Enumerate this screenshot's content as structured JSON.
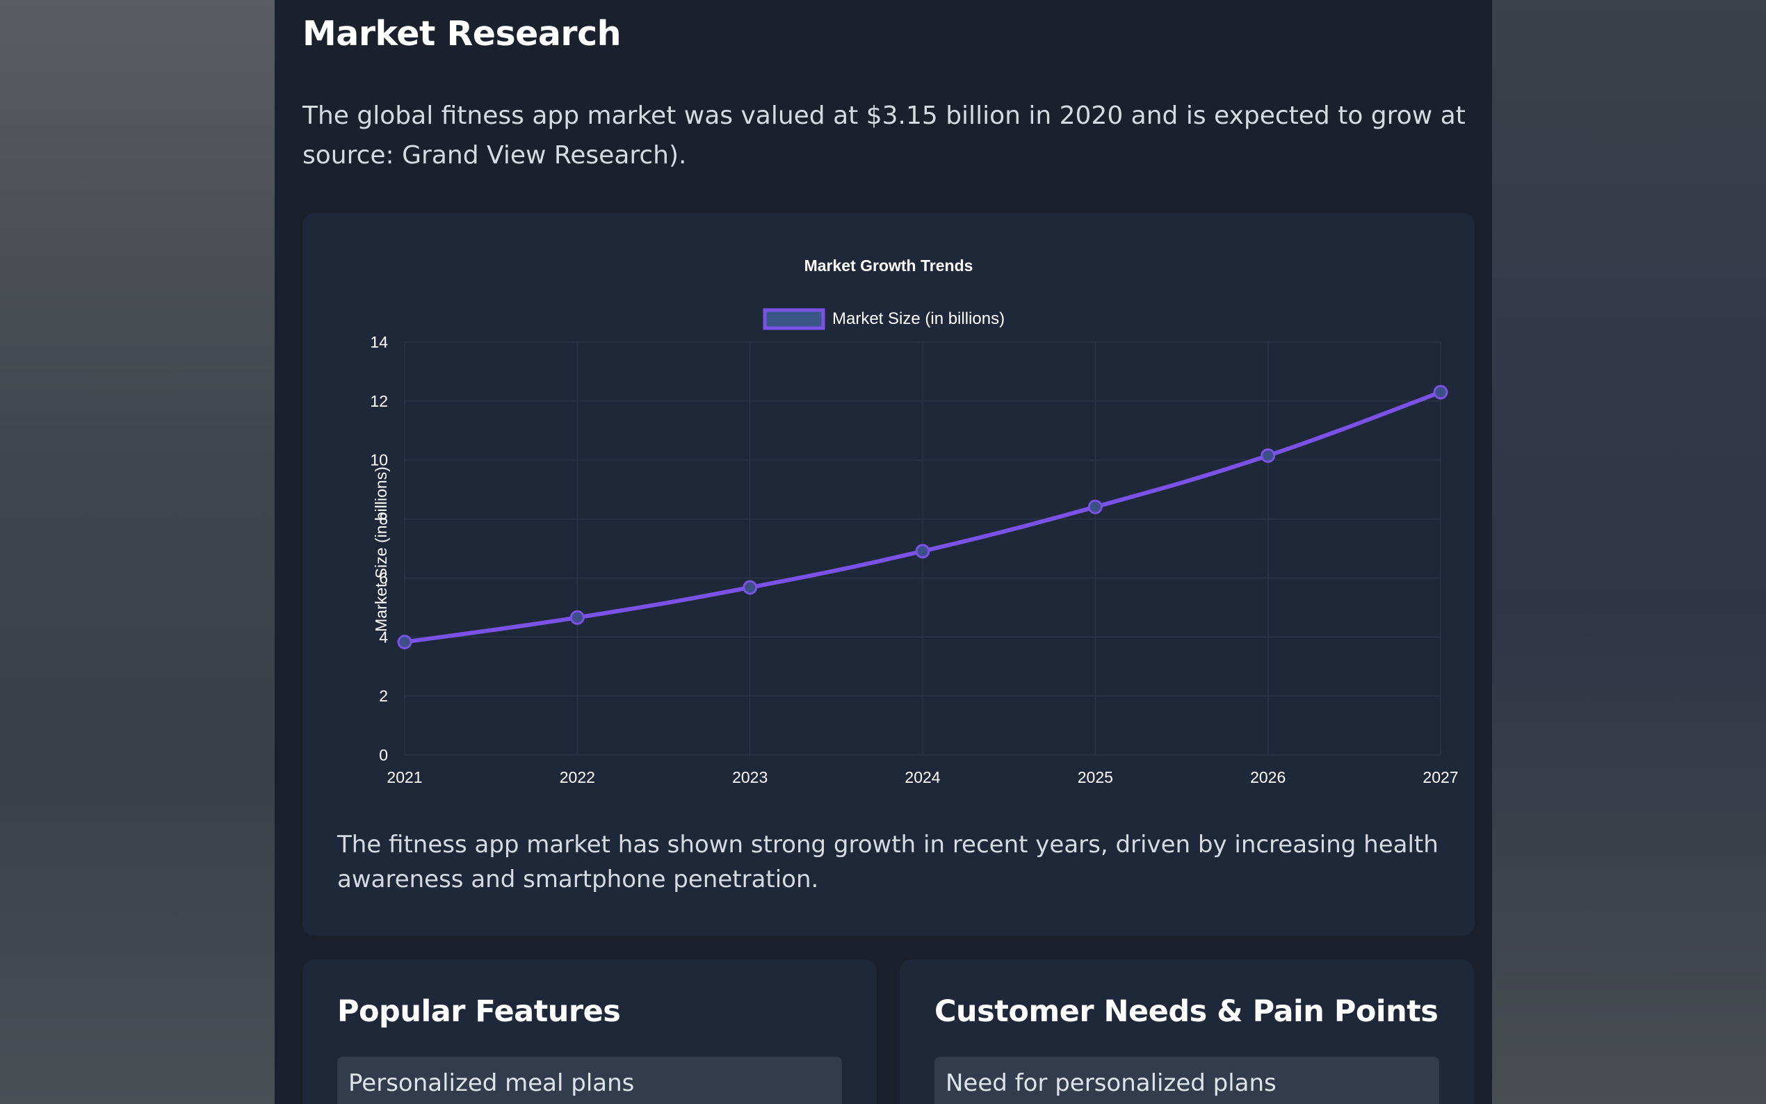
{
  "section": {
    "title": "Market Research",
    "intro": "The global fitness app market was valued at $3.15 billion in 2020 and is expected to grow at source: Grand View Research)."
  },
  "chart_caption": "The fitness app market has shown strong growth in recent years, driven by increasing health awareness and smartphone penetration.",
  "cards": {
    "features": {
      "title": "Popular Features",
      "items": [
        "Personalized meal plans"
      ]
    },
    "needs": {
      "title": "Customer Needs & Pain Points",
      "items": [
        "Need for personalized plans"
      ]
    }
  },
  "colors": {
    "line": "#7b52e6",
    "point_fill": "#3c4f86",
    "legend_box_fill": "#3a5788",
    "grid": "#2a3446",
    "text": "#ffffff"
  },
  "chart_data": {
    "type": "line",
    "title": "Market Growth Trends",
    "categories": [
      "2021",
      "2022",
      "2023",
      "2024",
      "2025",
      "2026",
      "2027"
    ],
    "series": [
      {
        "name": "Market Size (in billions)",
        "values": [
          3.83,
          4.66,
          5.68,
          6.91,
          8.41,
          10.15,
          12.3
        ]
      }
    ],
    "xlabel": "",
    "ylabel": "Market Size (in billions)",
    "ylim": [
      0,
      14
    ],
    "yticks": [
      0,
      2,
      4,
      6,
      8,
      10,
      12,
      14
    ],
    "grid": true,
    "legend": "top-center"
  }
}
